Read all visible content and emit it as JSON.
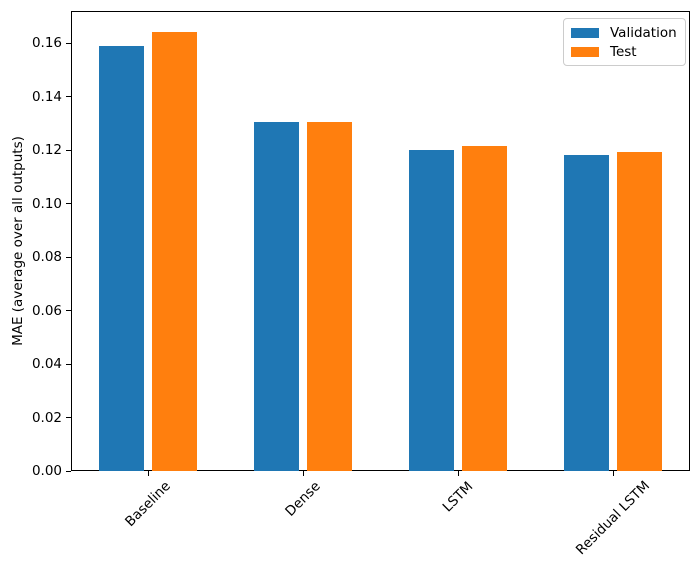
{
  "chart_data": {
    "type": "bar",
    "title": "",
    "xlabel": "",
    "ylabel": "MAE (average over all outputs)",
    "categories": [
      "Baseline",
      "Dense",
      "LSTM",
      "Residual LSTM"
    ],
    "series": [
      {
        "name": "Validation",
        "color": "#1f77b4",
        "values": [
          0.159,
          0.1305,
          0.1201,
          0.1182
        ]
      },
      {
        "name": "Test",
        "color": "#ff7f0e",
        "values": [
          0.164,
          0.1306,
          0.1217,
          0.1191
        ]
      }
    ],
    "ylim": [
      0,
      0.172
    ],
    "yticks": [
      0.0,
      0.02,
      0.04,
      0.06,
      0.08,
      0.1,
      0.12,
      0.14,
      0.16
    ],
    "ytick_format": "0.00",
    "xtick_rotation": 45,
    "grid": false,
    "legend": {
      "position": "upper right",
      "entries": [
        "Validation",
        "Test"
      ]
    },
    "colors": {
      "spine": "#000000",
      "legend_border": "#cccccc",
      "background": "#ffffff"
    }
  }
}
